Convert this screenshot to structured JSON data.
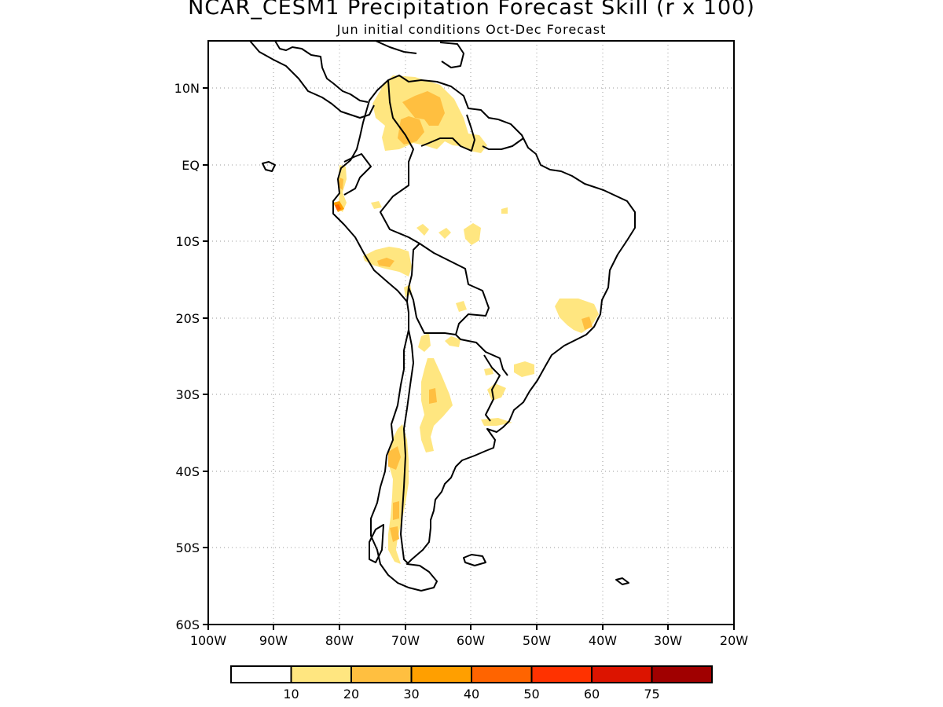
{
  "header": {
    "title": "NCAR_CESM1 Precipitation Forecast Skill (r x 100)",
    "subtitle": "Jun initial conditions  Oct-Dec Forecast"
  },
  "map": {
    "lon_range": [
      -100,
      -20
    ],
    "lat_range": [
      -60,
      15
    ],
    "grid": "dotted",
    "lat_labels": [
      "10N",
      "EQ",
      "10S",
      "20S",
      "30S",
      "40S",
      "50S",
      "60S"
    ],
    "lon_labels": [
      "100W",
      "90W",
      "80W",
      "70W",
      "60W",
      "50W",
      "40W",
      "30W",
      "20W"
    ]
  },
  "colorbar": {
    "labels": [
      "10",
      "20",
      "30",
      "40",
      "50",
      "60",
      "75"
    ],
    "colors": [
      "#ffffff",
      "#ffe680",
      "#ffbf40",
      "#ff9f00",
      "#ff6400",
      "#ff3200",
      "#dc1400",
      "#a00000"
    ]
  }
}
